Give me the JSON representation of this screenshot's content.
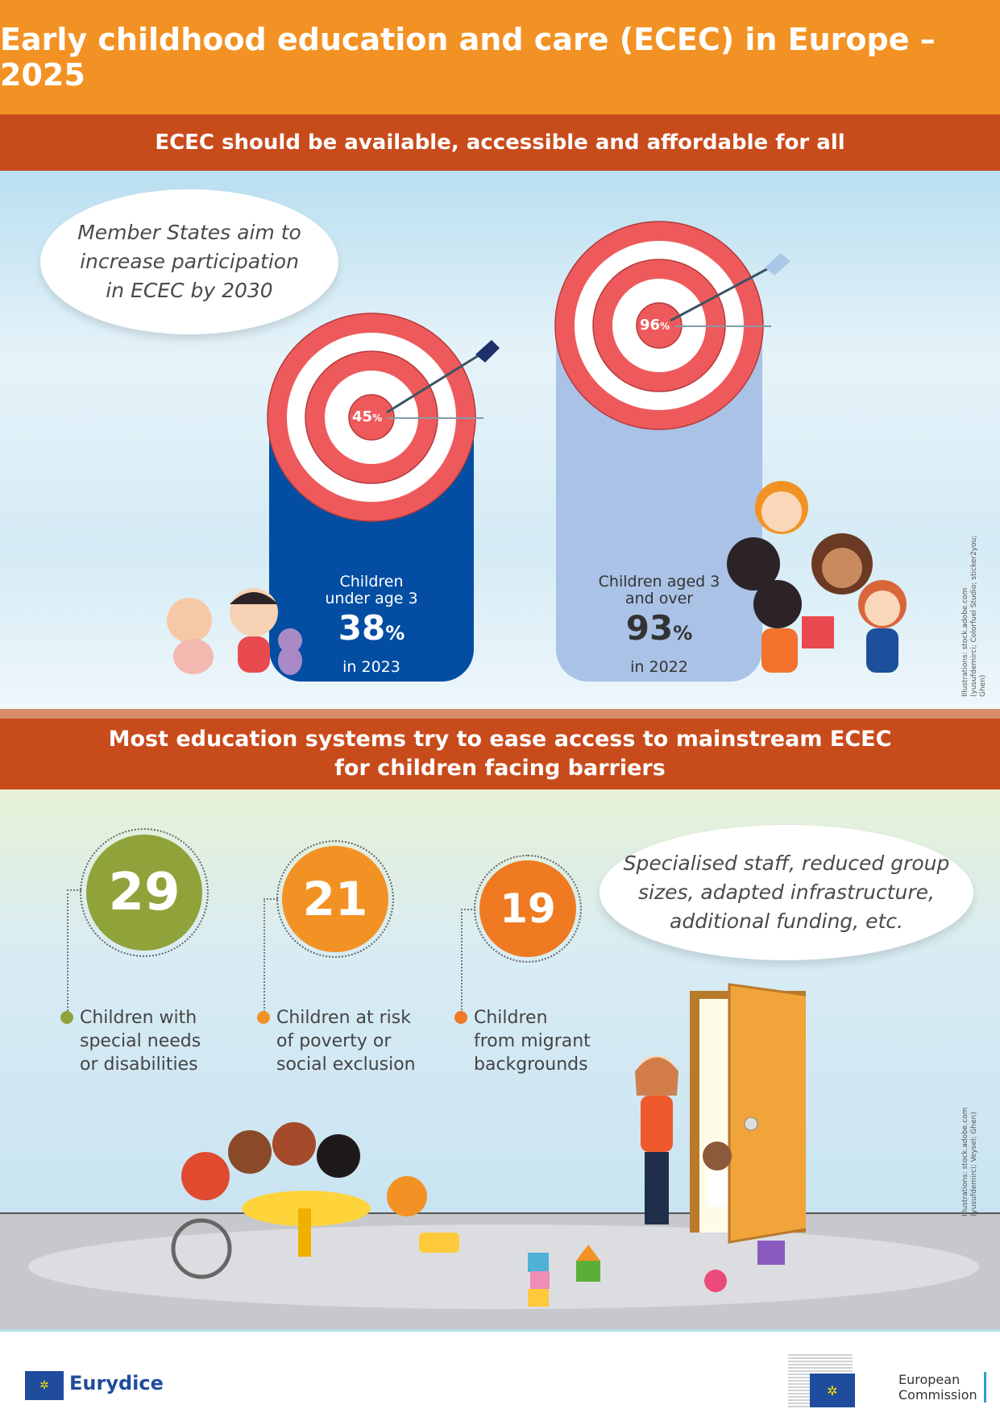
{
  "header": {
    "title": "Early childhood education and care (ECEC) in Europe – 2025"
  },
  "section1": {
    "heading": "ECEC should be available, accessible and affordable for all",
    "bubble": [
      "Member States aim to",
      "increase participation",
      "in ECEC by 2030"
    ],
    "under3": {
      "label1": "Children",
      "label2": "under age 3",
      "value": "38",
      "unit": "%",
      "year": "in 2023",
      "target": "45",
      "target_unit": "%",
      "color": "#034ea2"
    },
    "over3": {
      "label1": "Children aged 3",
      "label2": "and over",
      "value": "93",
      "unit": "%",
      "year": "in 2022",
      "target": "96",
      "target_unit": "%",
      "color": "#a9c2e5"
    },
    "credit": [
      "Illustrations: stock.adobe.com",
      "(yusufdemirci; Colorfuel Studio; sticker2you; Ghen)"
    ]
  },
  "section2": {
    "heading": [
      "Most education systems try to ease access to mainstream ECEC",
      "for children facing barriers"
    ],
    "stats": [
      {
        "value": "29",
        "lines": [
          "Children with",
          "special needs",
          "or disabilities"
        ],
        "color": "#8fa33a"
      },
      {
        "value": "21",
        "lines": [
          "Children at risk",
          "of poverty or",
          "social exclusion"
        ],
        "color": "#f39224"
      },
      {
        "value": "19",
        "lines": [
          "Children",
          "from migrant",
          "backgrounds"
        ],
        "color": "#ef7a22"
      }
    ],
    "bubble": [
      "Specialised staff, reduced group",
      "sizes, adapted infrastructure,",
      "additional funding, etc."
    ],
    "credit": [
      "Illustrations: stock.adobe.com",
      "(yusufdemirci; Veysel; Ghen)"
    ]
  },
  "footer": {
    "eurydice": "Eurydice",
    "ec": [
      "European",
      "Commission"
    ]
  }
}
